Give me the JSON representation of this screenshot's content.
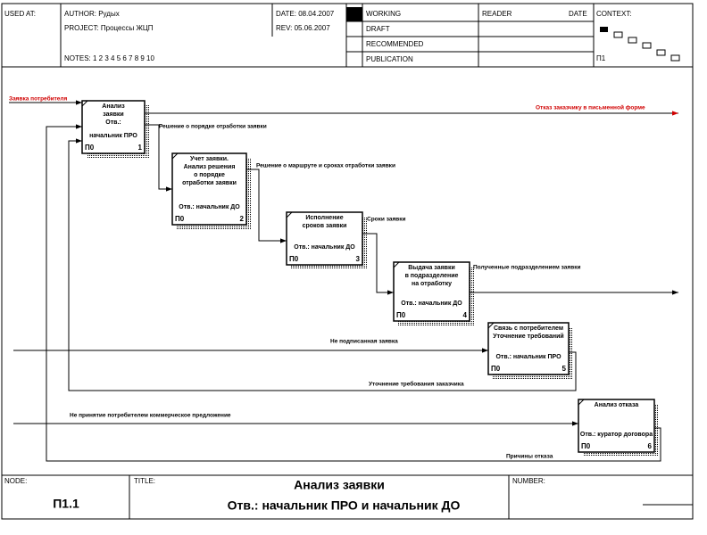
{
  "header": {
    "used_at": "USED AT:",
    "author": "AUTHOR:  Рудых",
    "project": "PROJECT:  Процессы ЖЦП",
    "notes": "NOTES:  1  2  3  4  5  6  7  8  9  10",
    "date": "DATE: 08.04.2007",
    "rev": "REV:  05.06.2007",
    "status": [
      "WORKING",
      "DRAFT",
      "RECOMMENDED",
      "PUBLICATION"
    ],
    "reader": "READER",
    "reader_date": "DATE",
    "context": "CONTEXT:",
    "context_node": "П1"
  },
  "nodes": [
    {
      "lines": [
        "Анализ",
        "заявки",
        "Отв.:"
      ],
      "owner": "начальник ПРО",
      "id": "П0",
      "num": "1"
    },
    {
      "lines": [
        "Учет заявки.",
        "Анализ решения",
        "о порядке",
        "отработки заявки"
      ],
      "owner": "Отв.: начальник ДО",
      "id": "П0",
      "num": "2"
    },
    {
      "lines": [
        "Исполнение",
        "сроков заявки"
      ],
      "owner": "Отв.: начальник ДО",
      "id": "П0",
      "num": "3"
    },
    {
      "lines": [
        "Выдача заявки",
        "в подразделение",
        "на отработку"
      ],
      "owner": "Отв.: начальник ДО",
      "id": "П0",
      "num": "4"
    },
    {
      "lines": [
        "Связь с потребителем",
        "Уточнение требований"
      ],
      "owner": "Отв.: начальник ПРО",
      "id": "П0",
      "num": "5"
    },
    {
      "lines": [
        "Анализ отказа"
      ],
      "owner": "Отв.: куратор договора",
      "id": "П0",
      "num": "6"
    }
  ],
  "arrows": [
    "Заявка потребителя",
    "Отказ заказчику в письменной форме",
    "Решение о порядке отработки заявки",
    "Решение о маршруте и сроках отработки заявки",
    "Сроки заявки",
    "Полученные подразделением заявки",
    "Не подписанная заявка",
    "Уточнение требования заказчика",
    "Не принятие потребителем коммерческое предложение",
    "Причины отказа"
  ],
  "footer": {
    "node_label": "NODE:",
    "node": "П1.1",
    "title_label": "TITLE:",
    "title": "Анализ заявки",
    "subtitle": "Отв.:  начальник ПРО  и начальник ДО",
    "number_label": "NUMBER:"
  }
}
